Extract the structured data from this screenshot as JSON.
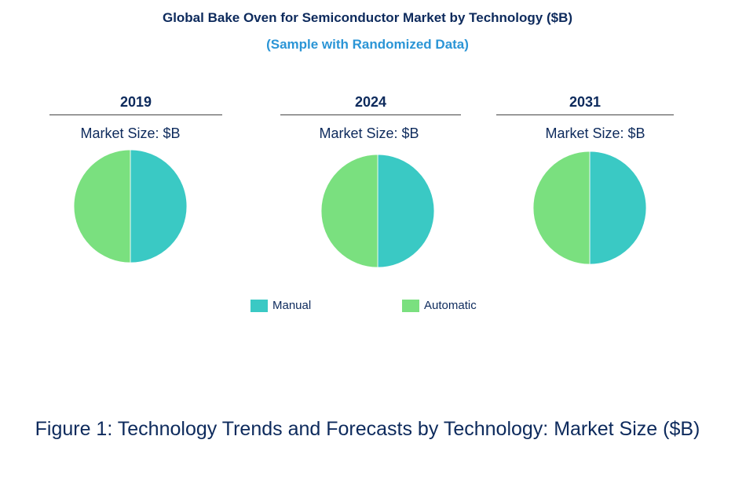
{
  "chart_data": {
    "type": "pie",
    "title": "Global Bake Oven for Semiconductor Market by Technology ($B)",
    "subtitle": "(Sample with Randomized Data)",
    "legend": [
      {
        "name": "Manual",
        "color": "#3ac9c4"
      },
      {
        "name": "Automatic",
        "color": "#7ae07f"
      }
    ],
    "legend_position": "bottom",
    "charts": [
      {
        "year": "2019",
        "label": "Market Size: $B",
        "values": [
          50,
          50
        ]
      },
      {
        "year": "2024",
        "label": "Market Size: $B",
        "values": [
          50,
          50
        ]
      },
      {
        "year": "2031",
        "label": "Market Size: $B",
        "values": [
          50,
          50
        ]
      }
    ]
  },
  "caption": "Figure 1: Technology Trends and Forecasts by Technology: Market Size ($B)"
}
